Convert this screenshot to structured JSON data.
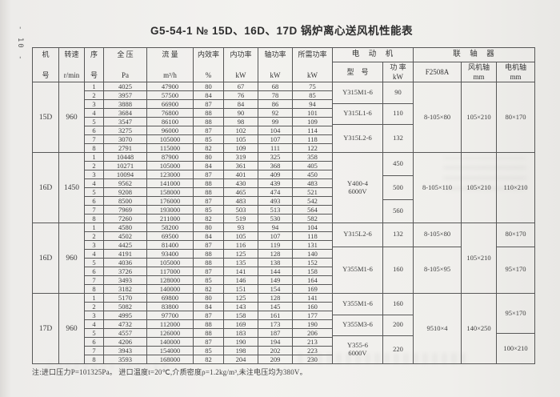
{
  "page": {
    "page_number": "- 10 -",
    "title": "G5-54-1  №  15D、16D、17D 锅炉离心送风机性能表",
    "note": "注:进口压力P=101325Pa。 进口温度t=20℃,介质密度ρ=1.2kg/m³,未注电压均为380V。"
  },
  "colors": {
    "paper": "#f3f2ef",
    "line": "#575757",
    "ink": "#3a3a3a"
  },
  "table": {
    "groups": {
      "motor": "电　动　机",
      "coupling": "联　轴　器"
    },
    "columns": [
      {
        "l1": "机",
        "l2": "号"
      },
      {
        "l1": "转速",
        "l2": "r/min"
      },
      {
        "l1": "序",
        "l2": "号"
      },
      {
        "l1": "全 压",
        "l2": "Pa"
      },
      {
        "l1": "流 量",
        "l2": "m³/h"
      },
      {
        "l1": "内效率",
        "l2": "%"
      },
      {
        "l1": "内功率",
        "l2": "kW"
      },
      {
        "l1": "轴功率",
        "l2": "kW"
      },
      {
        "l1": "所需功率",
        "l2": "kW"
      }
    ],
    "sub_columns": [
      {
        "l1": "型　号",
        "l2": ""
      },
      {
        "l1": "功 率",
        "l2": "kW"
      },
      {
        "l1": "F2508A",
        "l2": ""
      },
      {
        "l1": "风机轴",
        "l2": "mm"
      },
      {
        "l1": "电机轴",
        "l2": "mm"
      }
    ],
    "blocks": [
      {
        "machine": "15D",
        "speed": "960",
        "rows": [
          [
            "1",
            "4025",
            "47900",
            "80",
            "67",
            "68",
            "75"
          ],
          [
            "2",
            "3957",
            "57500",
            "84",
            "76",
            "78",
            "85"
          ],
          [
            "3",
            "3888",
            "66900",
            "87",
            "84",
            "86",
            "94"
          ],
          [
            "4",
            "3684",
            "76800",
            "88",
            "90",
            "92",
            "101"
          ],
          [
            "5",
            "3547",
            "86100",
            "88",
            "98",
            "99",
            "109"
          ],
          [
            "6",
            "3275",
            "96000",
            "87",
            "102",
            "104",
            "114"
          ],
          [
            "7",
            "3070",
            "105000",
            "85",
            "105",
            "107",
            "118"
          ],
          [
            "8",
            "2791",
            "115000",
            "82",
            "109",
            "111",
            "122"
          ]
        ],
        "model": [
          {
            "text": "Y315M1-6",
            "flex": 3
          },
          {
            "text": "Y315L1-6",
            "flex": 3
          },
          {
            "text": "Y315L2-6",
            "flex": 4
          }
        ],
        "power": [
          {
            "text": "90",
            "flex": 3
          },
          {
            "text": "110",
            "flex": 3
          },
          {
            "text": "132",
            "flex": 4
          }
        ],
        "f2508a": [
          {
            "text": "8-105×80",
            "flex": 1
          }
        ],
        "fan_shaft": [
          {
            "text": "105×210",
            "flex": 1
          }
        ],
        "motor_shaft": [
          {
            "text": "80×170",
            "flex": 1
          }
        ]
      },
      {
        "machine": "16D",
        "speed": "1450",
        "rows": [
          [
            "1",
            "10448",
            "87900",
            "80",
            "319",
            "325",
            "358"
          ],
          [
            "2",
            "10271",
            "105000",
            "84",
            "361",
            "368",
            "405"
          ],
          [
            "3",
            "10094",
            "123000",
            "87",
            "401",
            "409",
            "450"
          ],
          [
            "4",
            "9562",
            "141000",
            "88",
            "430",
            "439",
            "483"
          ],
          [
            "5",
            "9208",
            "158000",
            "88",
            "465",
            "474",
            "521"
          ],
          [
            "6",
            "8500",
            "176000",
            "87",
            "483",
            "493",
            "542"
          ],
          [
            "7",
            "7969",
            "193000",
            "85",
            "503",
            "513",
            "564"
          ],
          [
            "8",
            "7260",
            "211000",
            "82",
            "519",
            "530",
            "582"
          ]
        ],
        "model": [
          {
            "text": "Y400-4\n6000V",
            "flex": 1
          }
        ],
        "power": [
          {
            "text": "450",
            "flex": 1
          },
          {
            "text": "500",
            "flex": 1
          },
          {
            "text": "560",
            "flex": 1
          }
        ],
        "f2508a": [
          {
            "text": "8-105×110",
            "flex": 1
          }
        ],
        "fan_shaft": [
          {
            "text": "105×210",
            "flex": 1
          }
        ],
        "motor_shaft": [
          {
            "text": "110×210",
            "flex": 1
          }
        ]
      },
      {
        "machine": "16D",
        "speed": "960",
        "rows": [
          [
            "1",
            "4580",
            "58200",
            "80",
            "93",
            "94",
            "104"
          ],
          [
            "2",
            "4502",
            "69500",
            "84",
            "105",
            "107",
            "118"
          ],
          [
            "3",
            "4425",
            "81400",
            "87",
            "116",
            "119",
            "131"
          ],
          [
            "4",
            "4191",
            "93400",
            "88",
            "125",
            "128",
            "140"
          ],
          [
            "5",
            "4036",
            "105000",
            "88",
            "135",
            "138",
            "152"
          ],
          [
            "6",
            "3726",
            "117000",
            "87",
            "141",
            "144",
            "158"
          ],
          [
            "7",
            "3493",
            "128000",
            "85",
            "146",
            "149",
            "164"
          ],
          [
            "8",
            "3182",
            "140000",
            "82",
            "151",
            "154",
            "169"
          ]
        ],
        "model": [
          {
            "text": "Y315L2-6",
            "flex": 1
          },
          {
            "text": "Y355M1-6",
            "flex": 2
          }
        ],
        "power": [
          {
            "text": "132",
            "flex": 1
          },
          {
            "text": "160",
            "flex": 2
          }
        ],
        "f2508a": [
          {
            "text": "8-105×80",
            "flex": 1
          },
          {
            "text": "8-105×95",
            "flex": 2
          }
        ],
        "fan_shaft": [
          {
            "text": "105×210",
            "flex": 1
          }
        ],
        "motor_shaft": [
          {
            "text": "80×170",
            "flex": 1
          },
          {
            "text": "95×170",
            "flex": 2
          }
        ]
      },
      {
        "machine": "17D",
        "speed": "960",
        "rows": [
          [
            "1",
            "5170",
            "69800",
            "80",
            "125",
            "128",
            "141"
          ],
          [
            "2",
            "5082",
            "83800",
            "84",
            "143",
            "145",
            "160"
          ],
          [
            "3",
            "4995",
            "97700",
            "87",
            "158",
            "161",
            "177"
          ],
          [
            "4",
            "4732",
            "112000",
            "88",
            "169",
            "173",
            "190"
          ],
          [
            "5",
            "4557",
            "126000",
            "88",
            "183",
            "187",
            "206"
          ],
          [
            "6",
            "4206",
            "140000",
            "87",
            "190",
            "194",
            "213"
          ],
          [
            "7",
            "3943",
            "154000",
            "85",
            "198",
            "202",
            "223"
          ],
          [
            "8",
            "3593",
            "168000",
            "82",
            "204",
            "209",
            "230"
          ]
        ],
        "model": [
          {
            "text": "Y355M1-6",
            "flex": 3
          },
          {
            "text": "Y355M3-6",
            "flex": 3
          },
          {
            "text": "Y355-6\n6000V",
            "flex": 4
          }
        ],
        "power": [
          {
            "text": "160",
            "flex": 3
          },
          {
            "text": "200",
            "flex": 3
          },
          {
            "text": "220",
            "flex": 4
          }
        ],
        "f2508a": [
          {
            "text": "9510×4",
            "flex": 1
          }
        ],
        "fan_shaft": [
          {
            "text": "140×250",
            "flex": 1
          }
        ],
        "motor_shaft": [
          {
            "text": "95×170",
            "flex": 4
          },
          {
            "text": "100×210",
            "flex": 3
          }
        ]
      }
    ]
  }
}
